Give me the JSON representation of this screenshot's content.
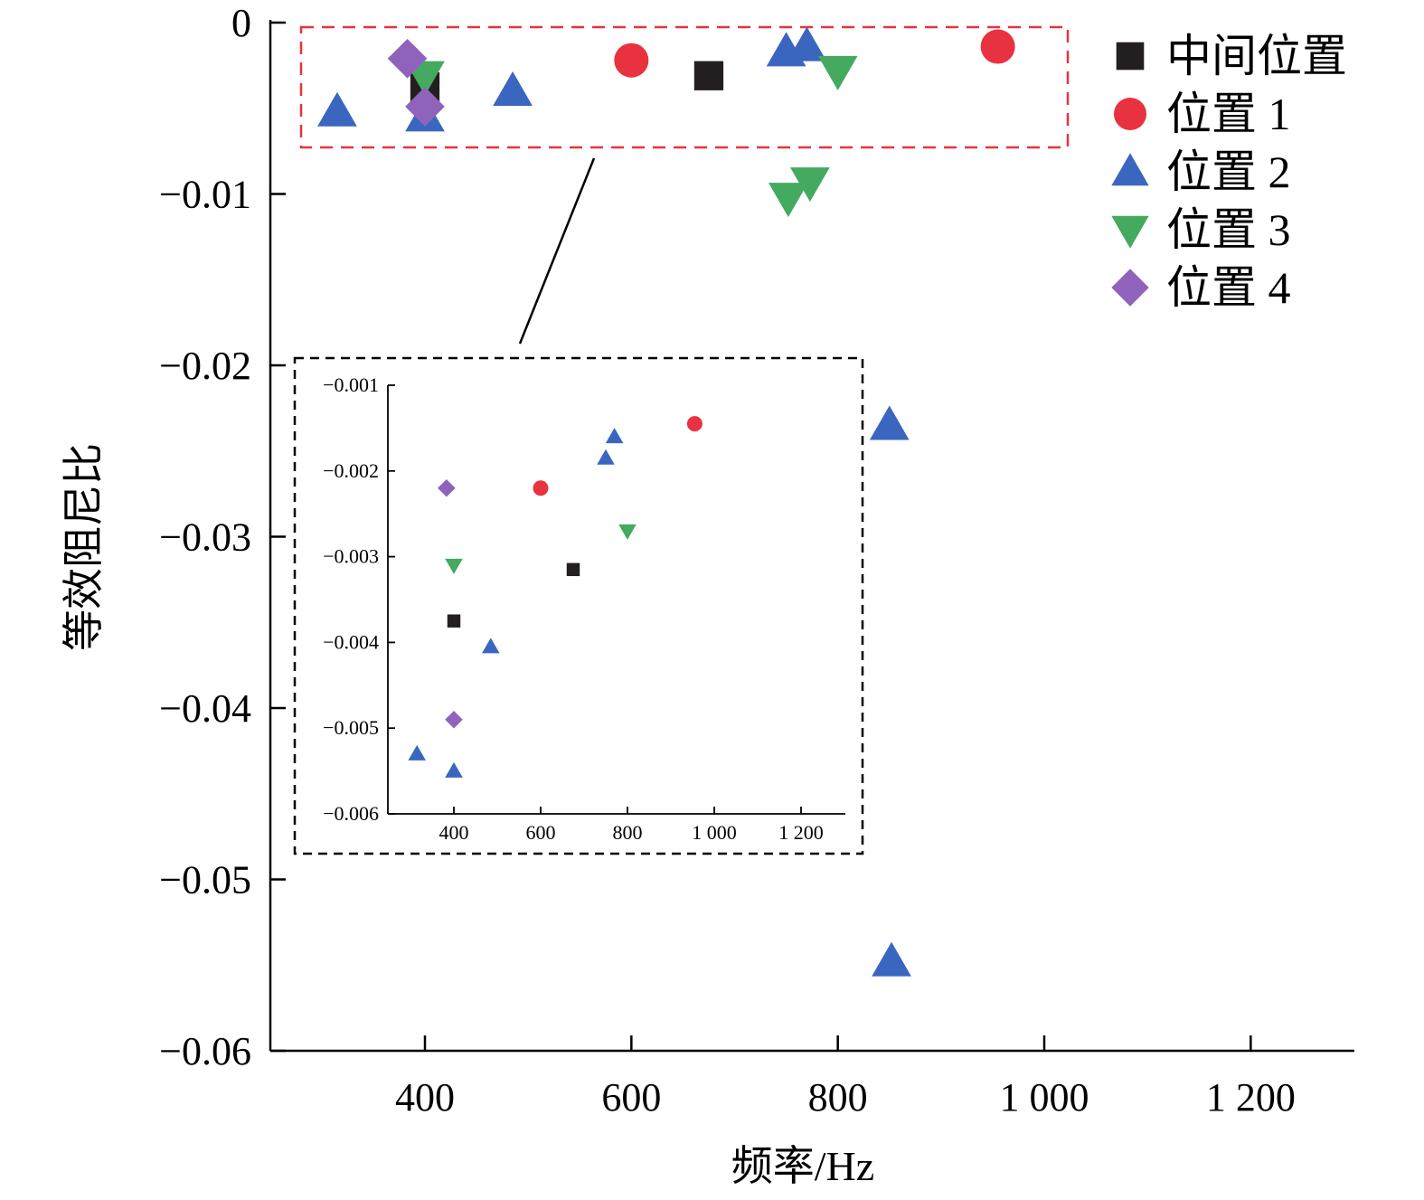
{
  "chart_data": [
    {
      "type": "scatter",
      "title": "",
      "xlabel": "频率/Hz",
      "ylabel": "等效阻尼比",
      "xlim": [
        250,
        1300
      ],
      "ylim": [
        -0.06,
        0
      ],
      "xticks": [
        400,
        600,
        800,
        1000,
        1200
      ],
      "xtick_labels": [
        "400",
        "600",
        "800",
        "1 000",
        "1 200"
      ],
      "yticks": [
        0,
        -0.01,
        -0.02,
        -0.03,
        -0.04,
        -0.05,
        -0.06
      ],
      "ytick_labels": [
        "0",
        "−0.01",
        "−0.02",
        "−0.03",
        "−0.04",
        "−0.05",
        "−0.06"
      ],
      "grid": false,
      "legend_position": "top-right",
      "series": [
        {
          "name": "中间位置",
          "marker": "square",
          "color": "#231f20",
          "points": [
            [
              400,
              -0.00375
            ],
            [
              675,
              -0.0031
            ]
          ]
        },
        {
          "name": "位置 1",
          "marker": "circle",
          "color": "#e8323f",
          "points": [
            [
              600,
              -0.0022
            ],
            [
              955,
              -0.0014
            ]
          ]
        },
        {
          "name": "位置 2",
          "marker": "triangle-up",
          "color": "#3a66bf",
          "points": [
            [
              315,
              -0.0052
            ],
            [
              400,
              -0.0055
            ],
            [
              485,
              -0.004
            ],
            [
              750,
              -0.0017
            ],
            [
              770,
              -0.0014
            ],
            [
              850,
              -0.0235
            ],
            [
              852,
              -0.0548
            ]
          ]
        },
        {
          "name": "位置 3",
          "marker": "triangle-down",
          "color": "#43aa5f",
          "points": [
            [
              400,
              -0.0031
            ],
            [
              800,
              -0.0028
            ],
            [
              752,
              -0.0102
            ],
            [
              773,
              -0.0093
            ]
          ]
        },
        {
          "name": "位置 4",
          "marker": "diamond",
          "color": "#8f63bb",
          "points": [
            [
              383,
              -0.0021
            ],
            [
              400,
              -0.0049
            ]
          ]
        }
      ]
    },
    {
      "type": "scatter",
      "title": "",
      "xlim": [
        250,
        1300
      ],
      "ylim": [
        -0.006,
        -0.001
      ],
      "xticks": [
        400,
        600,
        800,
        1000,
        1200
      ],
      "xtick_labels": [
        "400",
        "600",
        "800",
        "1 000",
        "1 200"
      ],
      "yticks": [
        -0.001,
        -0.002,
        -0.003,
        -0.004,
        -0.005,
        -0.006
      ],
      "ytick_labels": [
        "−0.001",
        "−0.002",
        "−0.003",
        "−0.004",
        "−0.005",
        "−0.006"
      ],
      "grid": false,
      "series": [
        {
          "name": "中间位置",
          "marker": "square",
          "color": "#231f20",
          "points": [
            [
              400,
              -0.00375
            ],
            [
              675,
              -0.00315
            ]
          ]
        },
        {
          "name": "位置 1",
          "marker": "circle",
          "color": "#e8323f",
          "points": [
            [
              600,
              -0.0022
            ],
            [
              955,
              -0.00145
            ]
          ]
        },
        {
          "name": "位置 2",
          "marker": "triangle-up",
          "color": "#3a66bf",
          "points": [
            [
              315,
              -0.0053
            ],
            [
              400,
              -0.0055
            ],
            [
              485,
              -0.00405
            ],
            [
              750,
              -0.00185
            ],
            [
              770,
              -0.0016
            ]
          ]
        },
        {
          "name": "位置 3",
          "marker": "triangle-down",
          "color": "#43aa5f",
          "points": [
            [
              400,
              -0.0031
            ],
            [
              800,
              -0.0027
            ]
          ]
        },
        {
          "name": "位置 4",
          "marker": "diamond",
          "color": "#8f63bb",
          "points": [
            [
              383,
              -0.0022
            ],
            [
              400,
              -0.0049
            ]
          ]
        }
      ]
    }
  ]
}
